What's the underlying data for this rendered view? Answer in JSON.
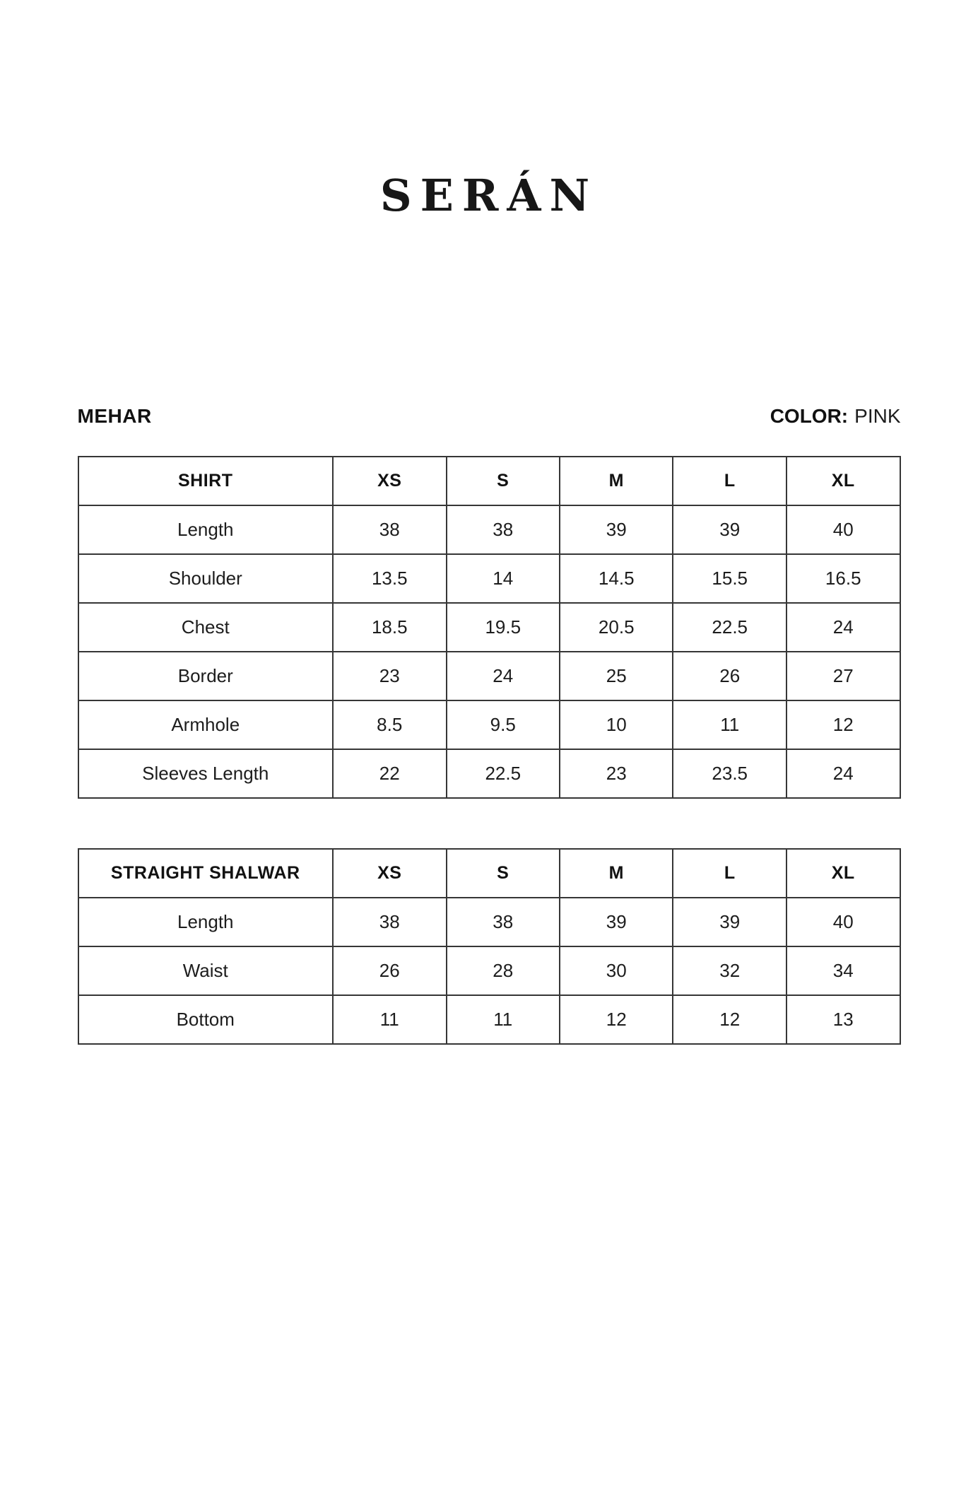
{
  "brand": {
    "logo_text": "SERÁN"
  },
  "product": {
    "name": "MEHAR",
    "color_label": "COLOR:",
    "color_value": "PINK"
  },
  "colors": {
    "text": "#1d1d1d",
    "table_border": "#363636",
    "background": "#ffffff"
  },
  "size_tables": [
    {
      "title": "SHIRT",
      "header": [
        "SHIRT",
        "XS",
        "S",
        "M",
        "L",
        "XL"
      ],
      "rows": [
        {
          "label": "Length",
          "values": [
            "38",
            "38",
            "39",
            "39",
            "40"
          ]
        },
        {
          "label": "Shoulder",
          "values": [
            "13.5",
            "14",
            "14.5",
            "15.5",
            "16.5"
          ]
        },
        {
          "label": "Chest",
          "values": [
            "18.5",
            "19.5",
            "20.5",
            "22.5",
            "24"
          ]
        },
        {
          "label": "Border",
          "values": [
            "23",
            "24",
            "25",
            "26",
            "27"
          ]
        },
        {
          "label": "Armhole",
          "values": [
            "8.5",
            "9.5",
            "10",
            "11",
            "12"
          ]
        },
        {
          "label": "Sleeves Length",
          "values": [
            "22",
            "22.5",
            "23",
            "23.5",
            "24"
          ]
        }
      ]
    },
    {
      "title": "STRAIGHT SHALWAR",
      "header": [
        "STRAIGHT SHALWAR",
        "XS",
        "S",
        "M",
        "L",
        "XL"
      ],
      "rows": [
        {
          "label": "Length",
          "values": [
            "38",
            "38",
            "39",
            "39",
            "40"
          ]
        },
        {
          "label": "Waist",
          "values": [
            "26",
            "28",
            "30",
            "32",
            "34"
          ]
        },
        {
          "label": "Bottom",
          "values": [
            "11",
            "11",
            "12",
            "12",
            "13"
          ]
        }
      ]
    }
  ]
}
